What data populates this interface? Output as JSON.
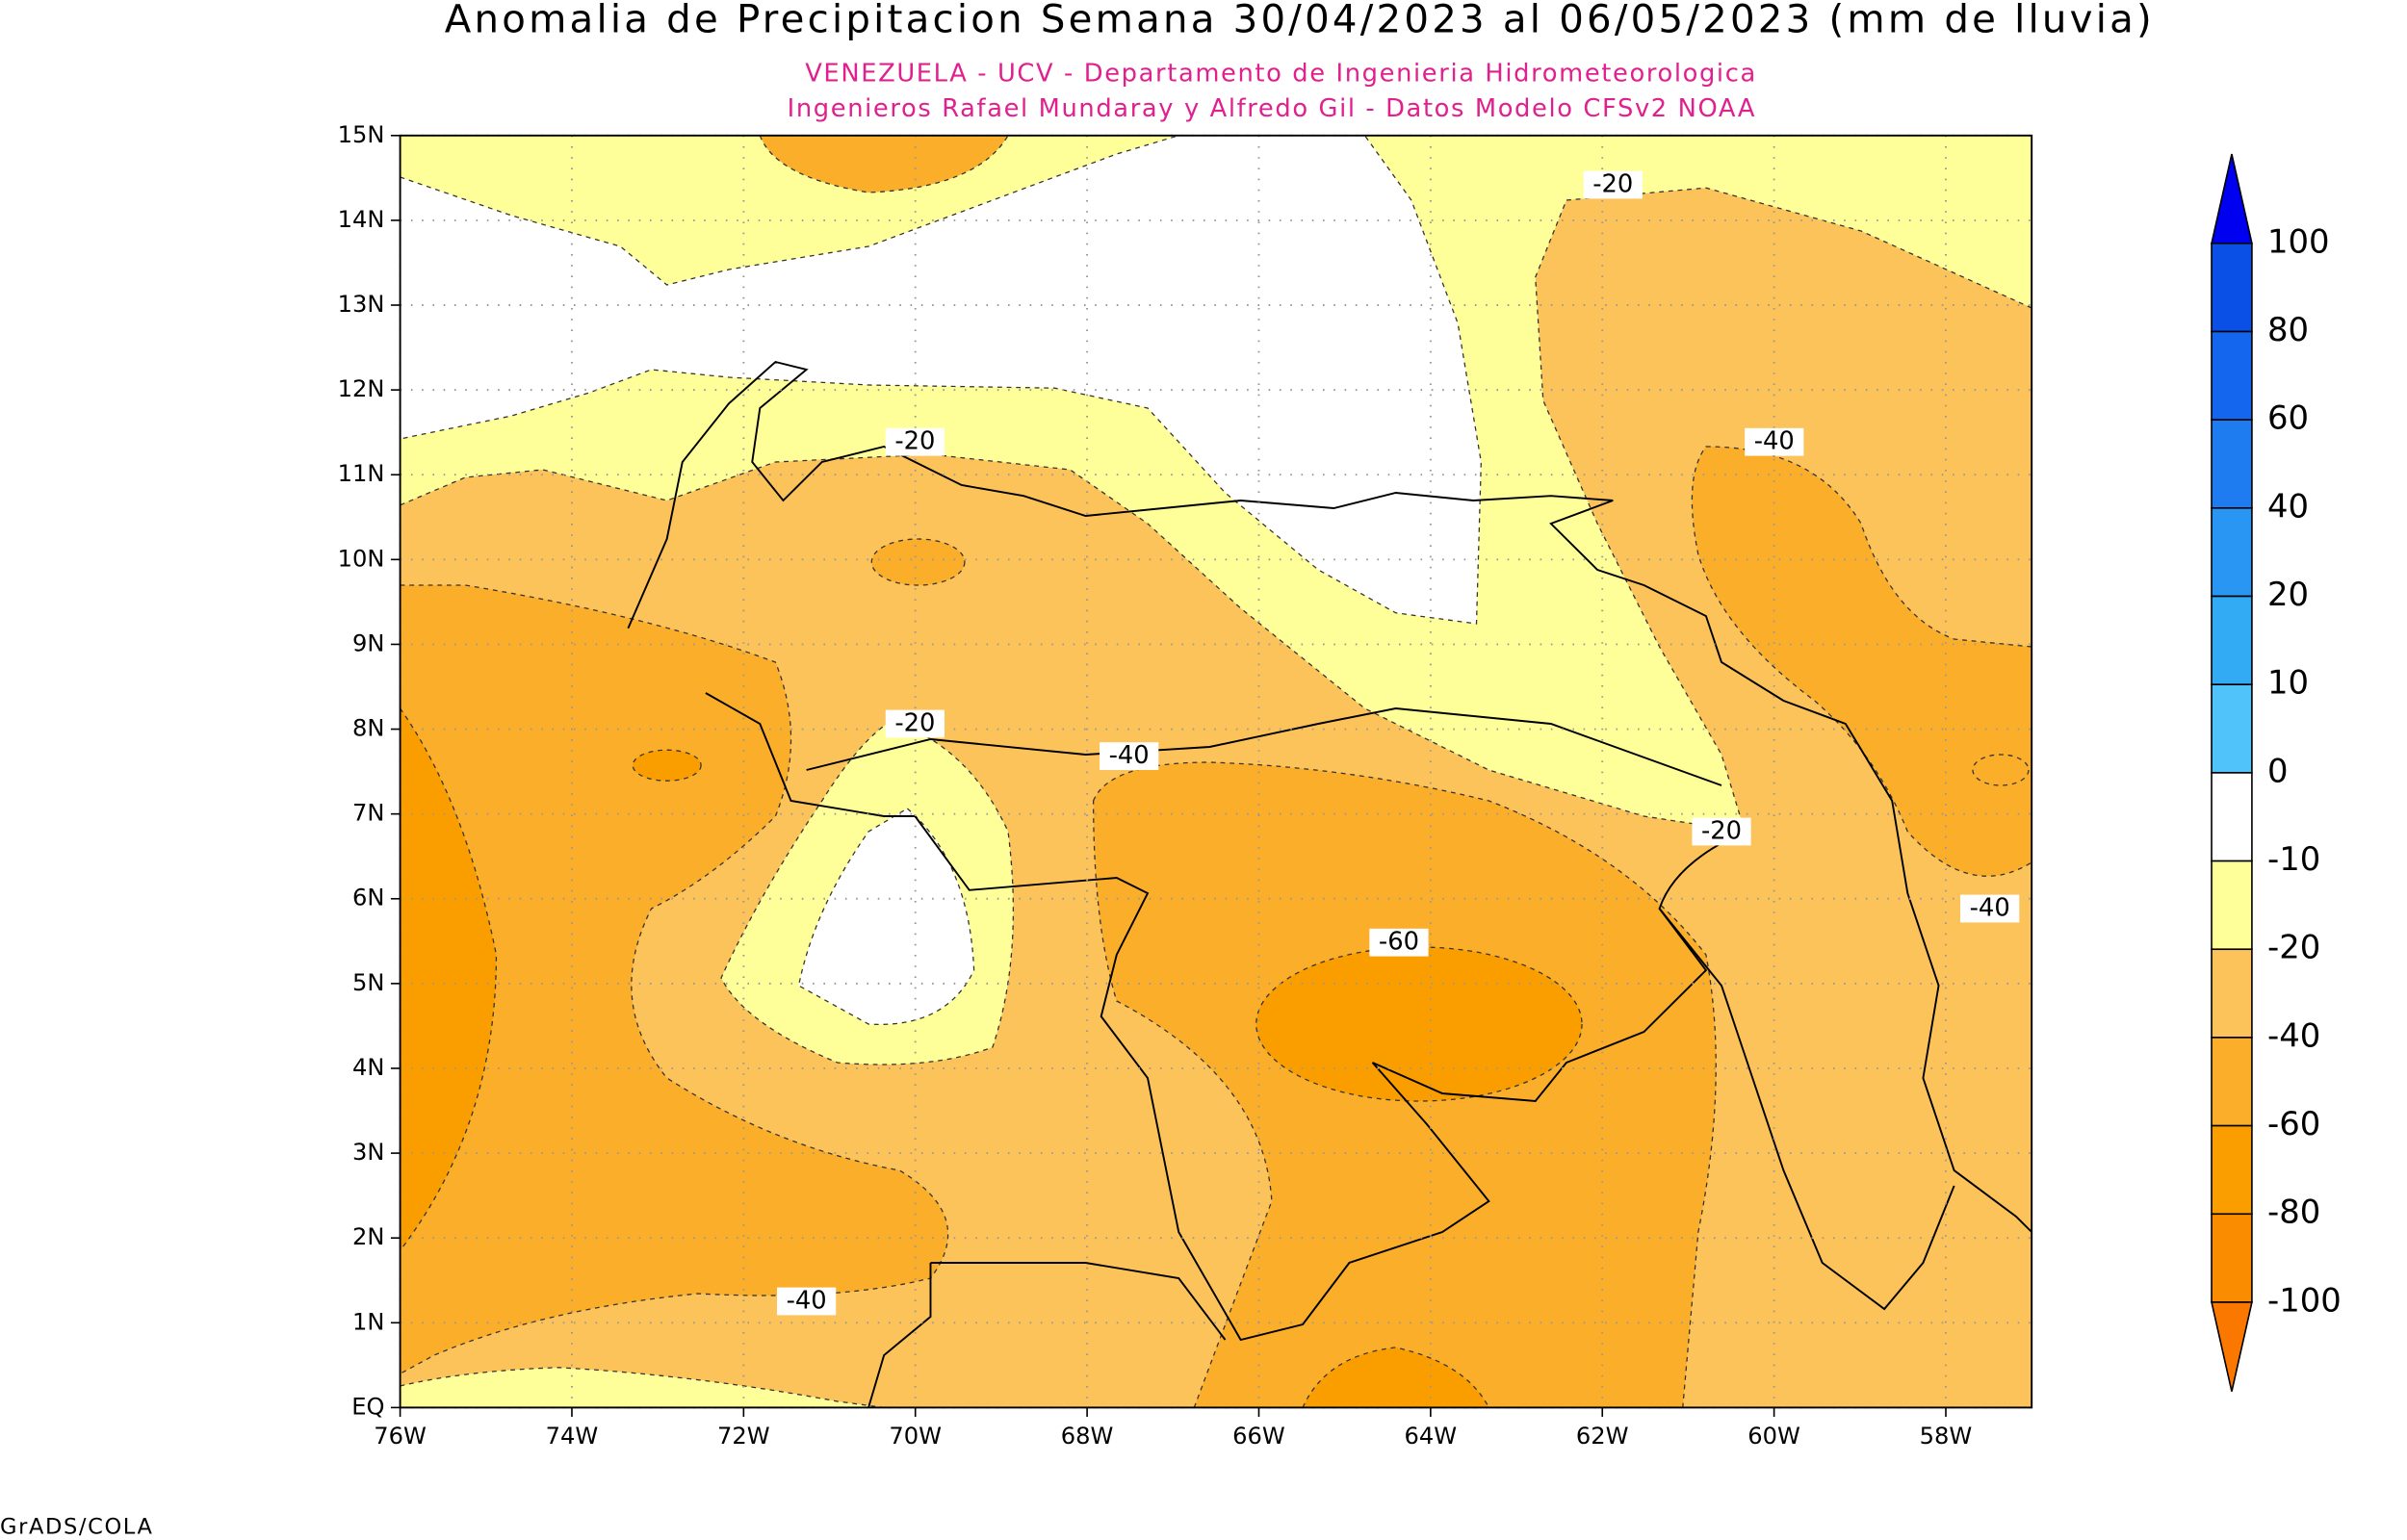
{
  "header": {
    "title": "Anomalia de Precipitacion Semana 30/04/2023 al 06/05/2023 (mm de lluvia)",
    "subtitle_lines": [
      "VENEZUELA - UCV - Departamento de Ingenieria Hidrometeorologica",
      "Ingenieros Rafael Mundaray y Alfredo Gil - Datos Modelo CFSv2 NOAA"
    ]
  },
  "map": {
    "lon_range": [
      -76,
      -57
    ],
    "lat_range": [
      0,
      15
    ],
    "lon_ticks": [
      {
        "value": -76,
        "label": "76W"
      },
      {
        "value": -74,
        "label": "74W"
      },
      {
        "value": -72,
        "label": "72W"
      },
      {
        "value": -70,
        "label": "70W"
      },
      {
        "value": -68,
        "label": "68W"
      },
      {
        "value": -66,
        "label": "66W"
      },
      {
        "value": -64,
        "label": "64W"
      },
      {
        "value": -62,
        "label": "62W"
      },
      {
        "value": -60,
        "label": "60W"
      },
      {
        "value": -58,
        "label": "58W"
      }
    ],
    "lat_ticks": [
      {
        "value": 0,
        "label": "EQ"
      },
      {
        "value": 1,
        "label": "1N"
      },
      {
        "value": 2,
        "label": "2N"
      },
      {
        "value": 3,
        "label": "3N"
      },
      {
        "value": 4,
        "label": "4N"
      },
      {
        "value": 5,
        "label": "5N"
      },
      {
        "value": 6,
        "label": "6N"
      },
      {
        "value": 7,
        "label": "7N"
      },
      {
        "value": 8,
        "label": "8N"
      },
      {
        "value": 9,
        "label": "9N"
      },
      {
        "value": 10,
        "label": "10N"
      },
      {
        "value": 11,
        "label": "11N"
      },
      {
        "value": 12,
        "label": "12N"
      },
      {
        "value": 13,
        "label": "13N"
      },
      {
        "value": 14,
        "label": "14N"
      },
      {
        "value": 15,
        "label": "15N"
      }
    ],
    "contour_labels": [
      -20,
      -20,
      -20,
      -20,
      -40,
      -40,
      -40,
      -40,
      -60
    ]
  },
  "colorbar": {
    "levels": [
      100,
      80,
      60,
      40,
      20,
      10,
      0,
      -10,
      -20,
      -40,
      -60,
      -80,
      -100
    ],
    "colors": [
      "#0a50e6",
      "#1466ee",
      "#1e7cf0",
      "#2896f2",
      "#32aaf4",
      "#50c4fa",
      "#ffffff",
      "#ffff99",
      "#fcc35a",
      "#fbae2a",
      "#fa9e00",
      "#fa8c00"
    ],
    "over_color": "#0000f0",
    "under_color": "#fa7800"
  },
  "footer": {
    "text": "GrADS/COLA"
  }
}
